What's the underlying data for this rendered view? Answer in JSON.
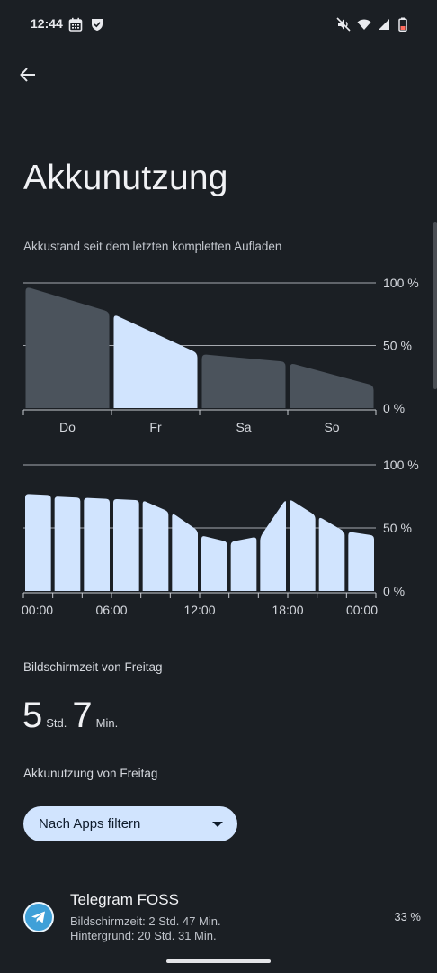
{
  "status_bar": {
    "time": "12:44",
    "left_icons": [
      "calendar-icon",
      "shield-icon"
    ],
    "right_icons": [
      "mute-icon",
      "wifi-icon",
      "signal-icon",
      "battery-icon"
    ]
  },
  "header": {
    "back_icon": "arrow-left-icon",
    "title": "Akkunutzung"
  },
  "colors": {
    "background": "#1b1f24",
    "accent_fill": "#d1e4fe",
    "inactive_fill": "#4b535c",
    "grid": "#c9ccd2"
  },
  "battery_since_full": {
    "subtitle": "Akkustand seit dem letzten kompletten Aufladen"
  },
  "chart_data": [
    {
      "type": "area",
      "title": "Akkustand seit dem letzten kompletten Aufladen",
      "categories": [
        "Do",
        "Fr",
        "Sa",
        "So"
      ],
      "selected_category": "Fr",
      "y_ticks": [
        "100 %",
        "50 %",
        "0 %"
      ],
      "ylim": [
        0,
        100
      ],
      "grid": true,
      "series": [
        {
          "values": [
            [
              97,
              77
            ],
            [
              75,
              44
            ],
            [
              43,
              37
            ],
            [
              36,
              18
            ]
          ]
        }
      ]
    },
    {
      "type": "bar",
      "x_ticks": [
        "00:00",
        "06:00",
        "12:00",
        "18:00",
        "00:00"
      ],
      "y_ticks": [
        "100 %",
        "50 %",
        "0 %"
      ],
      "ylim": [
        0,
        100
      ],
      "grid": true,
      "series": [
        {
          "values": [
            [
              77,
              76
            ],
            [
              75,
              74
            ],
            [
              74,
              73
            ],
            [
              73,
              72
            ],
            [
              72,
              63
            ],
            [
              62,
              48
            ],
            [
              44,
              39
            ],
            [
              39,
              43
            ],
            [
              43,
              73
            ],
            [
              73,
              60
            ],
            [
              59,
              47
            ],
            [
              47,
              44
            ]
          ]
        }
      ]
    }
  ],
  "screen_time": {
    "label": "Bildschirmzeit von Freitag",
    "hours": "5",
    "hours_unit": "Std.",
    "minutes": "7",
    "minutes_unit": "Min."
  },
  "usage": {
    "label": "Akkunutzung von Freitag",
    "filter_label": "Nach Apps filtern"
  },
  "apps": [
    {
      "name": "Telegram FOSS",
      "icon": "telegram-icon",
      "detail_screen": "Bildschirmzeit: 2 Std. 47 Min.",
      "detail_background": "Hintergrund: 20 Std. 31 Min.",
      "percent": "33 %"
    }
  ]
}
